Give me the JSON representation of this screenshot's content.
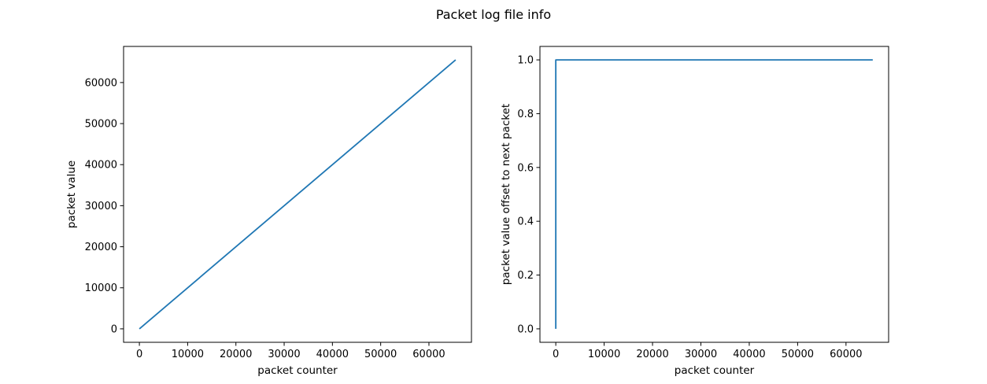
{
  "figure": {
    "suptitle": "Packet log file info"
  },
  "chart_data": [
    {
      "type": "line",
      "title": "",
      "xlabel": "packet counter",
      "ylabel": "packet value",
      "xlim": [
        -3277,
        68812
      ],
      "ylim": [
        -3276,
        68796
      ],
      "xticks": [
        0,
        10000,
        20000,
        30000,
        40000,
        50000,
        60000
      ],
      "yticks": [
        0,
        10000,
        20000,
        30000,
        40000,
        50000,
        60000
      ],
      "grid": false,
      "series": [
        {
          "color": "#1f77b4",
          "x": [
            0,
            65535
          ],
          "y": [
            0,
            65520
          ]
        }
      ]
    },
    {
      "type": "line",
      "title": "",
      "xlabel": "packet counter",
      "ylabel": "packet value offset to next packet",
      "xlim": [
        -3277,
        68812
      ],
      "ylim": [
        -0.05,
        1.05
      ],
      "xticks": [
        0,
        10000,
        20000,
        30000,
        40000,
        50000,
        60000
      ],
      "yticks": [
        0.0,
        0.2,
        0.4,
        0.6,
        0.8,
        1.0
      ],
      "ytick_labels": [
        "0.0",
        "0.2",
        "0.4",
        "0.6",
        "0.8",
        "1.0"
      ],
      "grid": false,
      "series": [
        {
          "color": "#1f77b4",
          "x": [
            0,
            1,
            65535
          ],
          "y": [
            0,
            1,
            1
          ]
        }
      ]
    }
  ]
}
